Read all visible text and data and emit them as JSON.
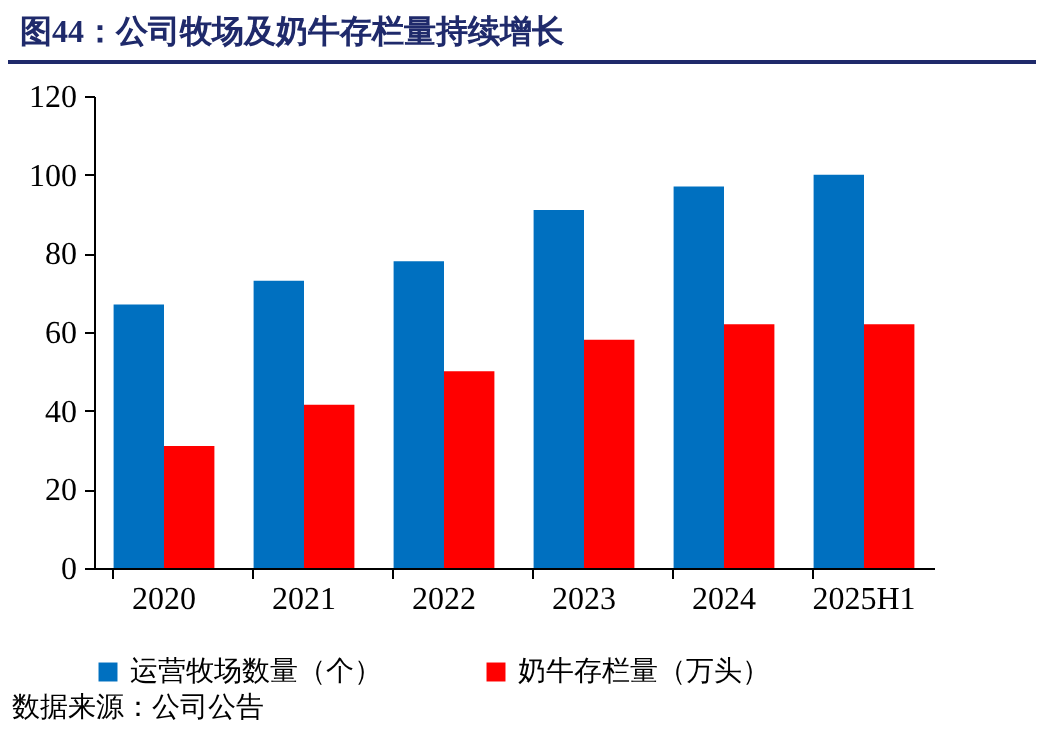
{
  "chart_data": {
    "type": "bar",
    "title": "图44：公司牧场及奶牛存栏量持续增长",
    "categories": [
      "2020",
      "2021",
      "2022",
      "2023",
      "2024",
      "2025H1"
    ],
    "series": [
      {
        "name": "运营牧场数量（个）",
        "color": "#0070c0",
        "values": [
          67,
          73,
          78,
          91,
          97,
          100
        ]
      },
      {
        "name": "奶牛存栏量（万头）",
        "color": "#ff0000",
        "values": [
          31,
          41.5,
          50,
          58,
          62,
          62
        ]
      }
    ],
    "ylim": [
      0,
      120
    ],
    "yticks": [
      0,
      20,
      40,
      60,
      80,
      100,
      120
    ],
    "grid": false,
    "legend": "bottom",
    "annotations": [
      "数据来源：公司公告"
    ]
  }
}
